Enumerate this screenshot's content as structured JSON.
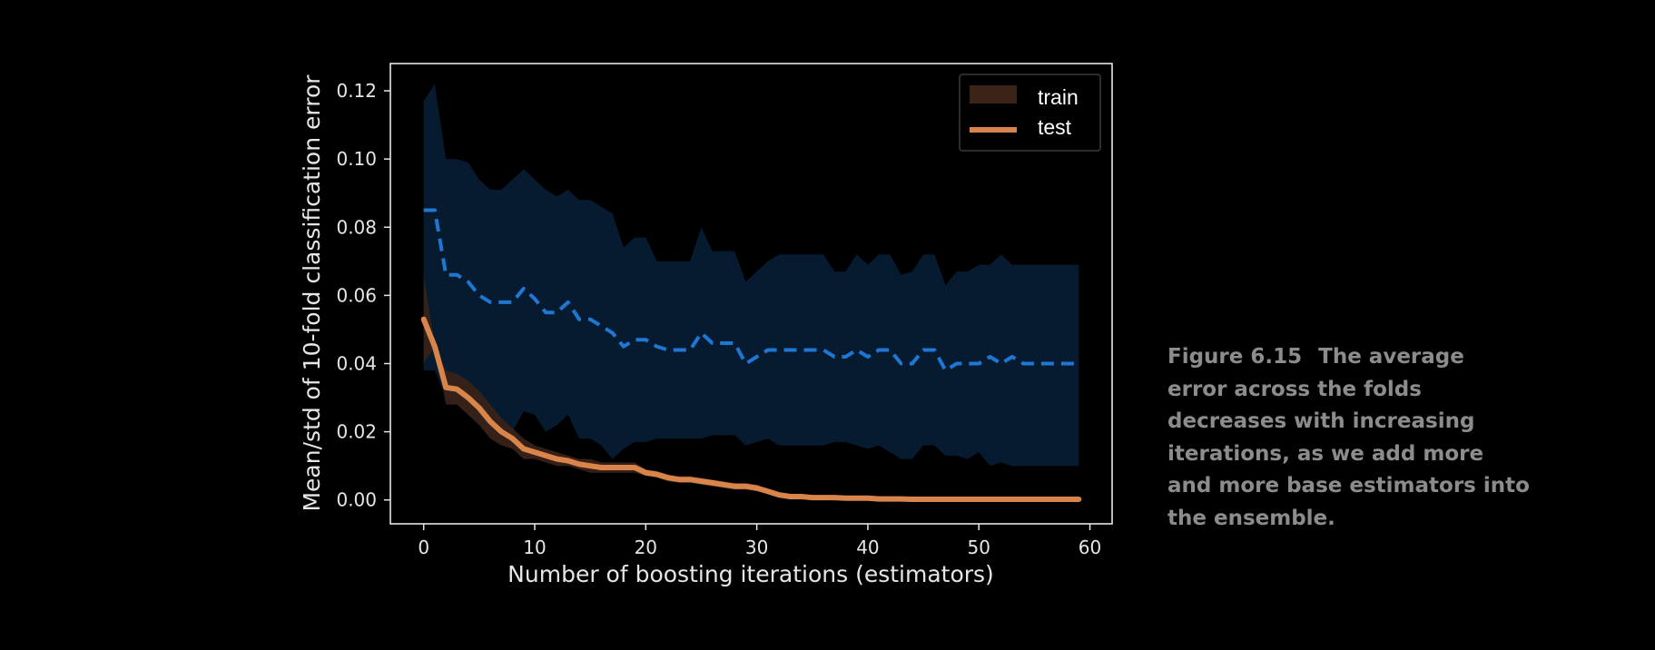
{
  "caption": {
    "figure_number": "Figure 6.15",
    "text": "The average error across the folds decreases with increasing iterations, as we add more and more base estimators into the ensemble."
  },
  "colors": {
    "background": "#000000",
    "test_line": "#d9844a",
    "train_band": "#3a2418",
    "blue_line": "#1f77d4",
    "blue_band": "#061c33",
    "axes": "#e6e6e6"
  },
  "chart_data": {
    "type": "line",
    "xlabel": "Number of boosting iterations (estimators)",
    "ylabel": "Mean/std of 10-fold classification error",
    "xlim": [
      -3,
      62
    ],
    "ylim": [
      -0.007,
      0.128
    ],
    "xticks": [
      0,
      10,
      20,
      30,
      40,
      50,
      60
    ],
    "yticks": [
      0.0,
      0.02,
      0.04,
      0.06,
      0.08,
      0.1,
      0.12
    ],
    "ytick_labels": [
      "0.00",
      "0.02",
      "0.04",
      "0.06",
      "0.08",
      "0.10",
      "0.12"
    ],
    "grid": false,
    "legend_position": "top-right",
    "legend": [
      {
        "label": "train",
        "style": "band",
        "color": "#3a2418"
      },
      {
        "label": "test",
        "style": "line",
        "color": "#d9844a"
      }
    ],
    "x": [
      0,
      1,
      2,
      3,
      4,
      5,
      6,
      7,
      8,
      9,
      10,
      11,
      12,
      13,
      14,
      15,
      16,
      17,
      18,
      19,
      20,
      21,
      22,
      23,
      24,
      25,
      26,
      27,
      28,
      29,
      30,
      31,
      32,
      33,
      34,
      35,
      36,
      37,
      38,
      39,
      40,
      41,
      42,
      43,
      44,
      45,
      46,
      47,
      48,
      49,
      50,
      51,
      52,
      53,
      54,
      55,
      56,
      57,
      58,
      59
    ],
    "series": [
      {
        "name": "train",
        "style": "line",
        "color": "#d9844a",
        "mean": [
          0.053,
          0.045,
          0.033,
          0.0325,
          0.03,
          0.027,
          0.023,
          0.02,
          0.018,
          0.015,
          0.014,
          0.013,
          0.012,
          0.0115,
          0.0105,
          0.01,
          0.0095,
          0.0095,
          0.0095,
          0.0095,
          0.008,
          0.0075,
          0.0065,
          0.006,
          0.006,
          0.0055,
          0.005,
          0.0045,
          0.004,
          0.004,
          0.0035,
          0.0025,
          0.0015,
          0.001,
          0.001,
          0.0007,
          0.0007,
          0.0007,
          0.0005,
          0.0005,
          0.0005,
          0.0003,
          0.0003,
          0.0003,
          0.0002,
          0.0002,
          0.0002,
          0.0002,
          0.0002,
          0.0002,
          0.0002,
          0.0002,
          0.0002,
          0.0002,
          0.0002,
          0.0002,
          0.0002,
          0.0002,
          0.0002,
          0.0002
        ],
        "std_upper": [
          0.066,
          0.045,
          0.038,
          0.037,
          0.035,
          0.032,
          0.028,
          0.024,
          0.021,
          0.018,
          0.016,
          0.015,
          0.014,
          0.013,
          0.012,
          0.012,
          0.011,
          0.011,
          0.011,
          0.011,
          0.009,
          0.0085,
          0.0075,
          0.007,
          0.007,
          0.0065,
          0.006,
          0.0055,
          0.005,
          0.005,
          0.0045,
          0.003,
          0.002,
          0.0015,
          0.0015,
          0.001,
          0.001,
          0.001,
          0.0008,
          0.0008,
          0.0008,
          0.0005,
          0.0005,
          0.0005,
          0.0003,
          0.0003,
          0.0003,
          0.0003,
          0.0003,
          0.0003,
          0.0003,
          0.0003,
          0.0003,
          0.0003,
          0.0003,
          0.0003,
          0.0003,
          0.0003,
          0.0003,
          0.0003
        ],
        "std_lower": [
          0.04,
          0.045,
          0.028,
          0.028,
          0.025,
          0.022,
          0.018,
          0.016,
          0.015,
          0.012,
          0.012,
          0.011,
          0.01,
          0.01,
          0.009,
          0.008,
          0.008,
          0.008,
          0.008,
          0.008,
          0.007,
          0.0065,
          0.0055,
          0.005,
          0.005,
          0.0045,
          0.004,
          0.0035,
          0.003,
          0.003,
          0.0025,
          0.002,
          0.001,
          0.0005,
          0.0005,
          0.0004,
          0.0004,
          0.0004,
          0.0002,
          0.0002,
          0.0002,
          0.0001,
          0.0001,
          0.0001,
          0,
          0,
          0,
          0,
          0,
          0,
          0,
          0,
          0,
          0,
          0,
          0,
          0,
          0,
          0,
          0
        ]
      },
      {
        "name": "test",
        "style": "dashed",
        "color": "#1f77d4",
        "mean": [
          0.085,
          0.085,
          0.066,
          0.066,
          0.064,
          0.06,
          0.058,
          0.058,
          0.058,
          0.062,
          0.059,
          0.055,
          0.055,
          0.058,
          0.053,
          0.053,
          0.051,
          0.049,
          0.045,
          0.047,
          0.047,
          0.045,
          0.044,
          0.044,
          0.044,
          0.049,
          0.046,
          0.046,
          0.046,
          0.04,
          0.042,
          0.044,
          0.044,
          0.044,
          0.044,
          0.044,
          0.044,
          0.042,
          0.042,
          0.044,
          0.042,
          0.044,
          0.044,
          0.04,
          0.04,
          0.044,
          0.044,
          0.038,
          0.04,
          0.04,
          0.04,
          0.042,
          0.04,
          0.042,
          0.04,
          0.04,
          0.04,
          0.04,
          0.04,
          0.04
        ],
        "std_upper": [
          0.117,
          0.122,
          0.1,
          0.1,
          0.099,
          0.094,
          0.091,
          0.091,
          0.094,
          0.097,
          0.094,
          0.091,
          0.089,
          0.091,
          0.088,
          0.088,
          0.086,
          0.084,
          0.074,
          0.077,
          0.077,
          0.07,
          0.07,
          0.07,
          0.07,
          0.08,
          0.073,
          0.073,
          0.073,
          0.064,
          0.067,
          0.07,
          0.072,
          0.072,
          0.072,
          0.072,
          0.072,
          0.067,
          0.067,
          0.072,
          0.069,
          0.072,
          0.072,
          0.066,
          0.067,
          0.072,
          0.072,
          0.063,
          0.067,
          0.067,
          0.069,
          0.069,
          0.072,
          0.069,
          0.069,
          0.069,
          0.069,
          0.069,
          0.069,
          0.069
        ],
        "std_lower": [
          0.038,
          0.038,
          0.03,
          0.028,
          0.025,
          0.022,
          0.02,
          0.02,
          0.02,
          0.026,
          0.025,
          0.02,
          0.022,
          0.025,
          0.018,
          0.018,
          0.016,
          0.012,
          0.015,
          0.017,
          0.017,
          0.018,
          0.018,
          0.018,
          0.018,
          0.018,
          0.019,
          0.019,
          0.019,
          0.016,
          0.017,
          0.018,
          0.016,
          0.016,
          0.016,
          0.016,
          0.016,
          0.017,
          0.017,
          0.016,
          0.015,
          0.016,
          0.014,
          0.012,
          0.012,
          0.016,
          0.016,
          0.013,
          0.013,
          0.012,
          0.014,
          0.01,
          0.011,
          0.01,
          0.01,
          0.01,
          0.01,
          0.01,
          0.01,
          0.01
        ]
      }
    ]
  }
}
